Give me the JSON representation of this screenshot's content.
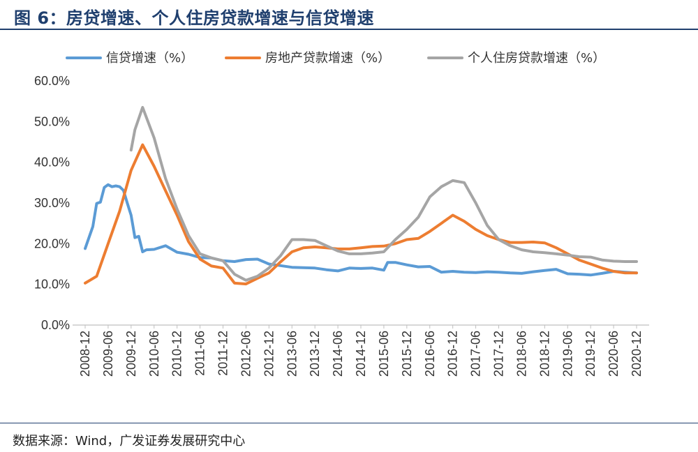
{
  "figure": {
    "title": "图 6：房贷增速、个人住房贷款增速与信贷增速",
    "source": "数据来源：Wind，广发证券发展研究中心"
  },
  "chart_data": {
    "type": "line",
    "title": "",
    "xlabel": "",
    "ylabel": "",
    "ylim": [
      0,
      60
    ],
    "y_ticks": [
      "0.0%",
      "10.0%",
      "20.0%",
      "30.0%",
      "40.0%",
      "50.0%",
      "60.0%"
    ],
    "x_ticks": [
      "2008-12",
      "2009-06",
      "2009-12",
      "2010-06",
      "2010-12",
      "2011-06",
      "2011-12",
      "2012-06",
      "2012-12",
      "2013-06",
      "2013-12",
      "2014-06",
      "2014-12",
      "2015-06",
      "2015-12",
      "2016-06",
      "2016-12",
      "2017-06",
      "2017-12",
      "2018-06",
      "2018-12",
      "2019-06",
      "2019-12",
      "2020-06",
      "2020-12"
    ],
    "grid": false,
    "legend_position": "top",
    "series": [
      {
        "name": "信贷增速（%）",
        "color": "#5b9bd5",
        "x": [
          "2008-12",
          "2009-02",
          "2009-03",
          "2009-04",
          "2009-05",
          "2009-06",
          "2009-07",
          "2009-08",
          "2009-09",
          "2009-10",
          "2009-11",
          "2009-12",
          "2010-01",
          "2010-02",
          "2010-03",
          "2010-04",
          "2010-06",
          "2010-09",
          "2010-12",
          "2011-03",
          "2011-06",
          "2011-09",
          "2011-12",
          "2012-03",
          "2012-06",
          "2012-09",
          "2012-12",
          "2013-03",
          "2013-06",
          "2013-09",
          "2013-12",
          "2014-03",
          "2014-06",
          "2014-09",
          "2014-12",
          "2015-03",
          "2015-06",
          "2015-07",
          "2015-09",
          "2015-12",
          "2016-03",
          "2016-06",
          "2016-09",
          "2016-12",
          "2017-03",
          "2017-06",
          "2017-09",
          "2017-12",
          "2018-03",
          "2018-06",
          "2018-09",
          "2018-12",
          "2019-03",
          "2019-06",
          "2019-09",
          "2019-12",
          "2020-03",
          "2020-06",
          "2020-09",
          "2020-12"
        ],
        "values": [
          18.8,
          24.2,
          29.9,
          30.2,
          33.8,
          34.5,
          34.0,
          34.2,
          34.0,
          33.1,
          30.0,
          27.0,
          21.5,
          21.8,
          18.0,
          18.5,
          18.6,
          19.5,
          17.9,
          17.4,
          16.6,
          16.5,
          15.8,
          15.6,
          16.1,
          16.2,
          15.0,
          14.6,
          14.2,
          14.1,
          14.0,
          13.6,
          13.3,
          14.0,
          13.9,
          14.0,
          13.5,
          15.4,
          15.4,
          14.8,
          14.3,
          14.4,
          13.0,
          13.2,
          13.0,
          12.9,
          13.1,
          13.0,
          12.8,
          12.7,
          13.1,
          13.4,
          13.7,
          12.6,
          12.5,
          12.3,
          12.7,
          13.2,
          13.0,
          12.8
        ]
      },
      {
        "name": "房地产贷款增速（%）",
        "color": "#ed7d31",
        "x": [
          "2008-12",
          "2009-03",
          "2009-06",
          "2009-09",
          "2009-12",
          "2010-03",
          "2010-06",
          "2010-09",
          "2010-12",
          "2011-03",
          "2011-06",
          "2011-09",
          "2011-12",
          "2012-03",
          "2012-06",
          "2012-09",
          "2012-12",
          "2013-03",
          "2013-06",
          "2013-09",
          "2013-12",
          "2014-03",
          "2014-06",
          "2014-09",
          "2014-12",
          "2015-03",
          "2015-06",
          "2015-09",
          "2015-12",
          "2016-03",
          "2016-06",
          "2016-09",
          "2016-12",
          "2017-03",
          "2017-06",
          "2017-09",
          "2017-12",
          "2018-03",
          "2018-06",
          "2018-09",
          "2018-12",
          "2019-03",
          "2019-06",
          "2019-09",
          "2019-12",
          "2020-03",
          "2020-06",
          "2020-09",
          "2020-12"
        ],
        "values": [
          10.3,
          12.0,
          20.0,
          28.0,
          38.0,
          44.3,
          39.0,
          33.0,
          27.0,
          20.5,
          16.2,
          14.5,
          14.0,
          10.3,
          10.1,
          11.5,
          12.8,
          15.5,
          18.0,
          19.0,
          19.2,
          19.0,
          18.7,
          18.7,
          19.0,
          19.3,
          19.4,
          20.0,
          21.0,
          21.3,
          23.0,
          25.0,
          27.0,
          25.5,
          23.5,
          22.0,
          21.0,
          20.3,
          20.3,
          20.4,
          20.2,
          19.0,
          17.5,
          16.0,
          15.0,
          14.0,
          13.2,
          12.8,
          12.8
        ]
      },
      {
        "name": "个人住房贷款增速（%）",
        "color": "#a5a5a5",
        "x": [
          "2009-12",
          "2010-01",
          "2010-03",
          "2010-06",
          "2010-09",
          "2010-12",
          "2011-03",
          "2011-06",
          "2011-09",
          "2011-12",
          "2012-03",
          "2012-06",
          "2012-09",
          "2012-12",
          "2013-03",
          "2013-06",
          "2013-09",
          "2013-12",
          "2014-03",
          "2014-06",
          "2014-09",
          "2014-12",
          "2015-03",
          "2015-06",
          "2015-09",
          "2015-12",
          "2016-03",
          "2016-06",
          "2016-09",
          "2016-12",
          "2017-03",
          "2017-06",
          "2017-09",
          "2017-12",
          "2018-03",
          "2018-06",
          "2018-09",
          "2018-12",
          "2019-03",
          "2019-06",
          "2019-09",
          "2019-12",
          "2020-03",
          "2020-06",
          "2020-09",
          "2020-12"
        ],
        "values": [
          43.0,
          48.0,
          53.5,
          46.0,
          36.0,
          28.5,
          22.0,
          17.5,
          16.5,
          15.8,
          12.5,
          11.0,
          12.0,
          14.0,
          17.0,
          21.0,
          21.0,
          20.8,
          19.5,
          18.2,
          17.5,
          17.5,
          17.7,
          18.0,
          21.0,
          23.5,
          26.5,
          31.5,
          34.0,
          35.5,
          35.0,
          30.0,
          24.5,
          21.0,
          19.5,
          18.5,
          18.0,
          17.8,
          17.5,
          17.2,
          16.8,
          16.7,
          16.0,
          15.7,
          15.6,
          15.6
        ]
      }
    ]
  }
}
